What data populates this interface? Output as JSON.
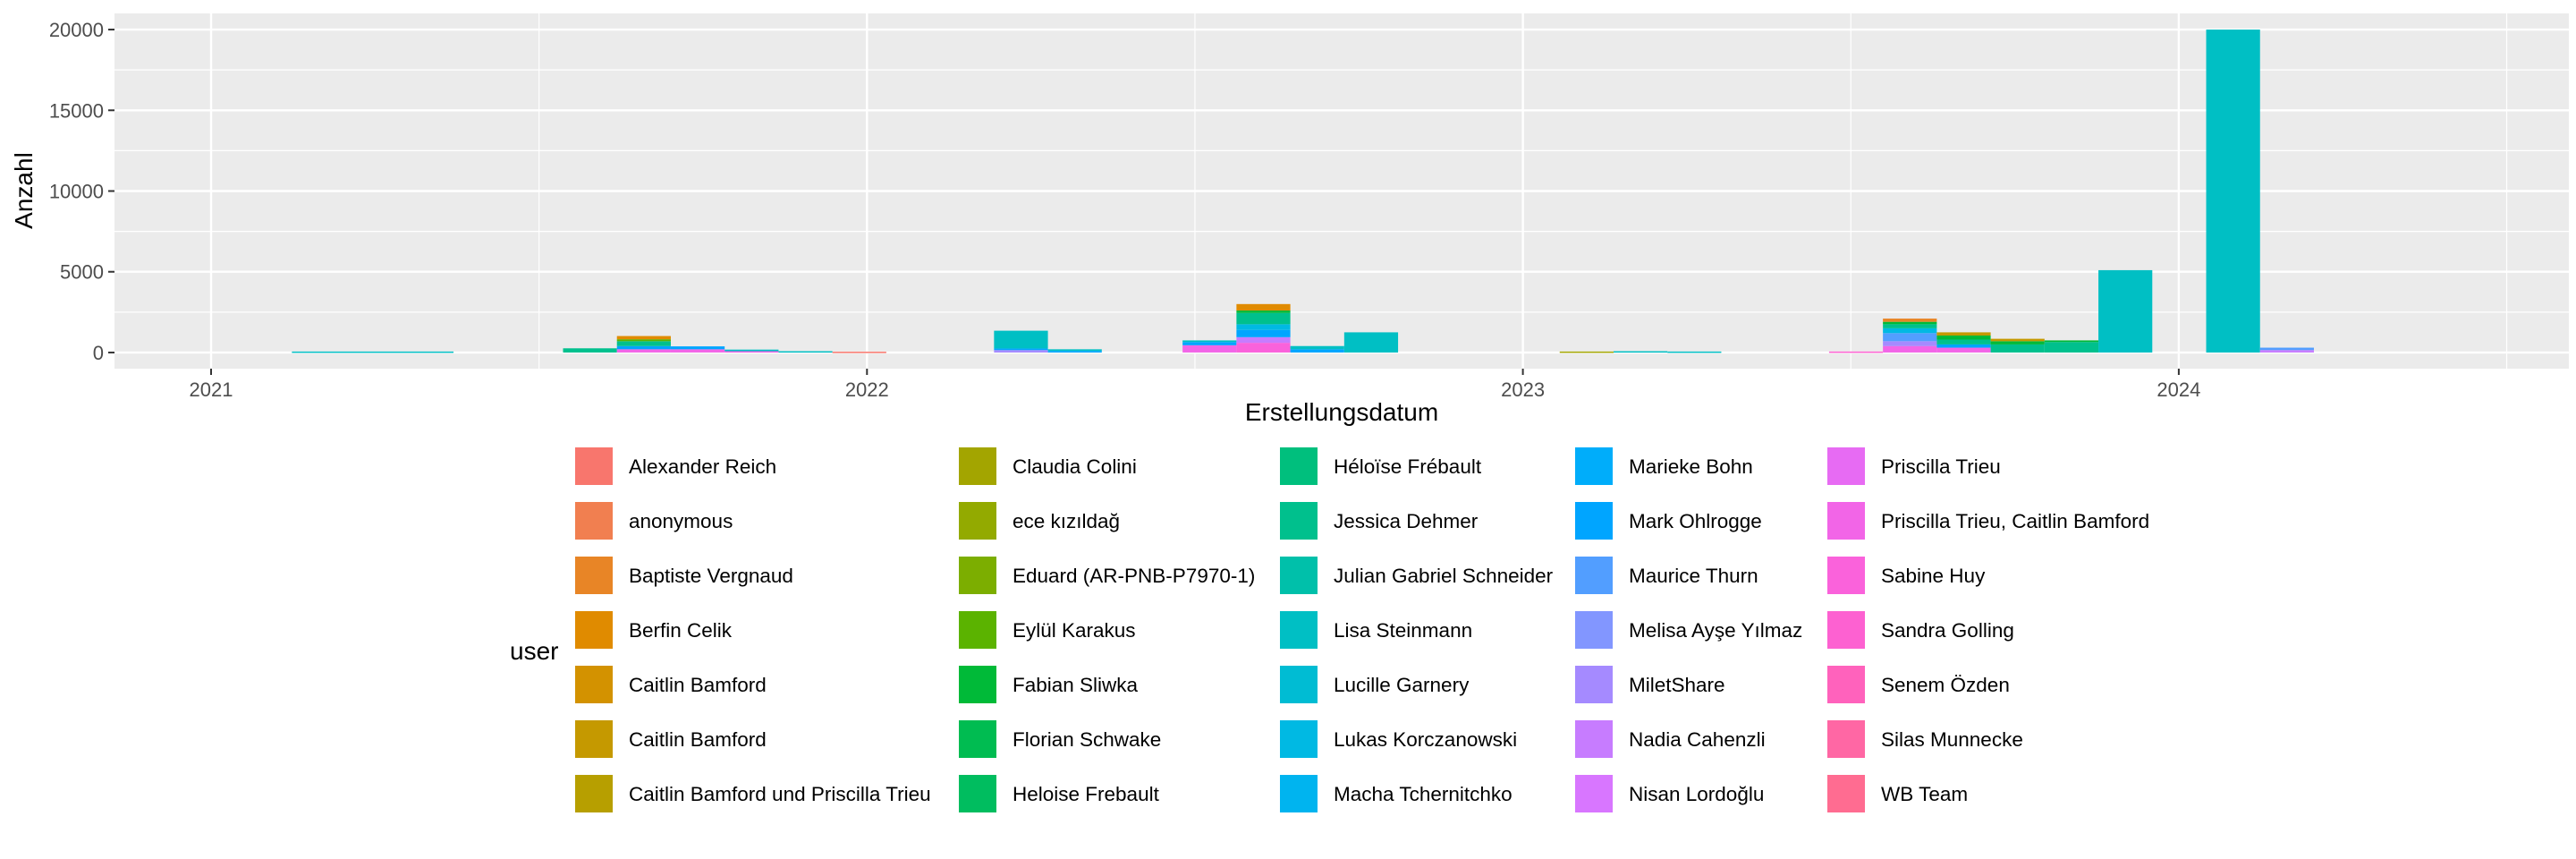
{
  "chart_data": {
    "type": "bar",
    "stacked": true,
    "xlabel": "Erstellungsdatum",
    "ylabel": "Anzahl",
    "x_ticks": [
      "2021",
      "2022",
      "2023",
      "2024"
    ],
    "y_ticks": [
      0,
      5000,
      10000,
      15000,
      20000
    ],
    "ylim": [
      -1000,
      21000
    ],
    "grid": true,
    "legend_title": "user",
    "legend_position": "bottom",
    "legend_entries": [
      {
        "name": "Alexander Reich",
        "color": "#F8766D"
      },
      {
        "name": "anonymous",
        "color": "#F17F50"
      },
      {
        "name": "Baptiste Vergnaud",
        "color": "#E88526"
      },
      {
        "name": "Berfin Celik",
        "color": "#E08B00"
      },
      {
        "name": "Caitlin Bamford",
        "color": "#D39200"
      },
      {
        "name": "Caitlin Bamford",
        "color": "#C59900"
      },
      {
        "name": "Caitlin Bamford und Priscilla Trieu",
        "color": "#B79F00"
      },
      {
        "name": "Claudia Colini",
        "color": "#A3A500"
      },
      {
        "name": "ece kızıldağ",
        "color": "#93AA00"
      },
      {
        "name": "Eduard (AR-PNB-P7970-1)",
        "color": "#7CAE00"
      },
      {
        "name": "Eylül Karakus",
        "color": "#5BB300"
      },
      {
        "name": "Fabian Sliwka",
        "color": "#00BA38"
      },
      {
        "name": "Florian Schwake",
        "color": "#00BC51"
      },
      {
        "name": "Heloise Frebault",
        "color": "#00BD5F"
      },
      {
        "name": "Héloïse Frébault",
        "color": "#00BF7D"
      },
      {
        "name": "Jessica Dehmer",
        "color": "#00C08D"
      },
      {
        "name": "Julian Gabriel Schneider",
        "color": "#00C0AA"
      },
      {
        "name": "Lisa Steinmann",
        "color": "#00BFC4"
      },
      {
        "name": "Lucille Garnery",
        "color": "#00BCD3"
      },
      {
        "name": "Lukas Korczanowski",
        "color": "#00B9E3"
      },
      {
        "name": "Macha Tchernitchko",
        "color": "#00B4EF"
      },
      {
        "name": "Marieke Bohn",
        "color": "#00ADFA"
      },
      {
        "name": "Mark Ohlrogge",
        "color": "#00A5FF"
      },
      {
        "name": "Maurice Thurn",
        "color": "#529EFF"
      },
      {
        "name": "Melisa Ayşe Yılmaz",
        "color": "#8296FF"
      },
      {
        "name": "MiletShare",
        "color": "#A58AFF"
      },
      {
        "name": "Nadia Cahenzli",
        "color": "#C77CFF"
      },
      {
        "name": "Nisan Lordoğlu",
        "color": "#D876FF"
      },
      {
        "name": "Priscilla Trieu",
        "color": "#E76BF3"
      },
      {
        "name": "Priscilla Trieu, Caitlin Bamford",
        "color": "#F265E7"
      },
      {
        "name": "Sabine Huy",
        "color": "#FA62DB"
      },
      {
        "name": "Sandra Golling",
        "color": "#FD61D1"
      },
      {
        "name": "Senem Özden",
        "color": "#FF62BC"
      },
      {
        "name": "Silas Munnecke",
        "color": "#FF67A4"
      },
      {
        "name": "WB Team",
        "color": "#FF6C91"
      }
    ],
    "bars": [
      {
        "start": "2021-02-15",
        "end": "2021-05-16",
        "segments": [
          {
            "user": 17,
            "value": 60
          }
        ]
      },
      {
        "start": "2021-07-16",
        "end": "2021-08-15",
        "segments": [
          {
            "user": 15,
            "value": 260
          }
        ]
      },
      {
        "start": "2021-08-15",
        "end": "2021-09-14",
        "segments": [
          {
            "user": 29,
            "value": 200
          },
          {
            "user": 22,
            "value": 200
          },
          {
            "user": 15,
            "value": 300
          },
          {
            "user": 10,
            "value": 120
          },
          {
            "user": 3,
            "value": 200
          }
        ]
      },
      {
        "start": "2021-09-14",
        "end": "2021-10-14",
        "segments": [
          {
            "user": 29,
            "value": 200
          },
          {
            "user": 22,
            "value": 180
          }
        ]
      },
      {
        "start": "2021-10-14",
        "end": "2021-11-13",
        "segments": [
          {
            "user": 29,
            "value": 80
          },
          {
            "user": 17,
            "value": 100
          }
        ]
      },
      {
        "start": "2021-11-13",
        "end": "2021-12-13",
        "segments": [
          {
            "user": 17,
            "value": 80
          }
        ]
      },
      {
        "start": "2021-12-13",
        "end": "2022-01-12",
        "segments": [
          {
            "user": 0,
            "value": 50
          }
        ]
      },
      {
        "start": "2022-03-13",
        "end": "2022-04-12",
        "segments": [
          {
            "user": 25,
            "value": 150
          },
          {
            "user": 22,
            "value": 100
          },
          {
            "user": 17,
            "value": 1100
          }
        ]
      },
      {
        "start": "2022-04-12",
        "end": "2022-05-12",
        "segments": [
          {
            "user": 22,
            "value": 100
          },
          {
            "user": 17,
            "value": 100
          }
        ]
      },
      {
        "start": "2022-06-26",
        "end": "2022-07-26",
        "segments": [
          {
            "user": 29,
            "value": 450
          },
          {
            "user": 22,
            "value": 200
          },
          {
            "user": 17,
            "value": 100
          }
        ]
      },
      {
        "start": "2022-07-26",
        "end": "2022-08-25",
        "segments": [
          {
            "user": 30,
            "value": 600
          },
          {
            "user": 26,
            "value": 350
          },
          {
            "user": 22,
            "value": 450
          },
          {
            "user": 19,
            "value": 350
          },
          {
            "user": 15,
            "value": 700
          },
          {
            "user": 11,
            "value": 150
          },
          {
            "user": 3,
            "value": 400
          }
        ]
      },
      {
        "start": "2022-08-25",
        "end": "2022-09-24",
        "segments": [
          {
            "user": 22,
            "value": 200
          },
          {
            "user": 17,
            "value": 200
          }
        ]
      },
      {
        "start": "2022-09-24",
        "end": "2022-10-24",
        "segments": [
          {
            "user": 17,
            "value": 1250
          }
        ]
      },
      {
        "start": "2023-01-22",
        "end": "2023-02-21",
        "segments": [
          {
            "user": 7,
            "value": 60
          }
        ]
      },
      {
        "start": "2023-02-21",
        "end": "2023-03-23",
        "segments": [
          {
            "user": 17,
            "value": 80
          }
        ]
      },
      {
        "start": "2023-03-23",
        "end": "2023-04-22",
        "segments": [
          {
            "user": 17,
            "value": 60
          }
        ]
      },
      {
        "start": "2023-06-21",
        "end": "2023-07-21",
        "segments": [
          {
            "user": 31,
            "value": 60
          }
        ]
      },
      {
        "start": "2023-07-21",
        "end": "2023-08-20",
        "segments": [
          {
            "user": 29,
            "value": 400
          },
          {
            "user": 25,
            "value": 300
          },
          {
            "user": 23,
            "value": 500
          },
          {
            "user": 19,
            "value": 300
          },
          {
            "user": 15,
            "value": 250
          },
          {
            "user": 11,
            "value": 150
          },
          {
            "user": 2,
            "value": 200
          }
        ]
      },
      {
        "start": "2023-08-20",
        "end": "2023-09-19",
        "segments": [
          {
            "user": 29,
            "value": 300
          },
          {
            "user": 22,
            "value": 200
          },
          {
            "user": 15,
            "value": 300
          },
          {
            "user": 11,
            "value": 250
          },
          {
            "user": 5,
            "value": 200
          }
        ]
      },
      {
        "start": "2023-09-19",
        "end": "2023-10-19",
        "segments": [
          {
            "user": 15,
            "value": 500
          },
          {
            "user": 11,
            "value": 200
          },
          {
            "user": 5,
            "value": 150
          }
        ]
      },
      {
        "start": "2023-10-19",
        "end": "2023-11-18",
        "segments": [
          {
            "user": 15,
            "value": 650
          },
          {
            "user": 11,
            "value": 100
          }
        ]
      },
      {
        "start": "2023-11-18",
        "end": "2023-12-18",
        "segments": [
          {
            "user": 17,
            "value": 5100
          }
        ]
      },
      {
        "start": "2024-01-17",
        "end": "2024-02-16",
        "segments": [
          {
            "user": 17,
            "value": 20000
          }
        ]
      },
      {
        "start": "2024-02-16",
        "end": "2024-03-17",
        "segments": [
          {
            "user": 26,
            "value": 150
          },
          {
            "user": 23,
            "value": 150
          }
        ]
      }
    ]
  }
}
